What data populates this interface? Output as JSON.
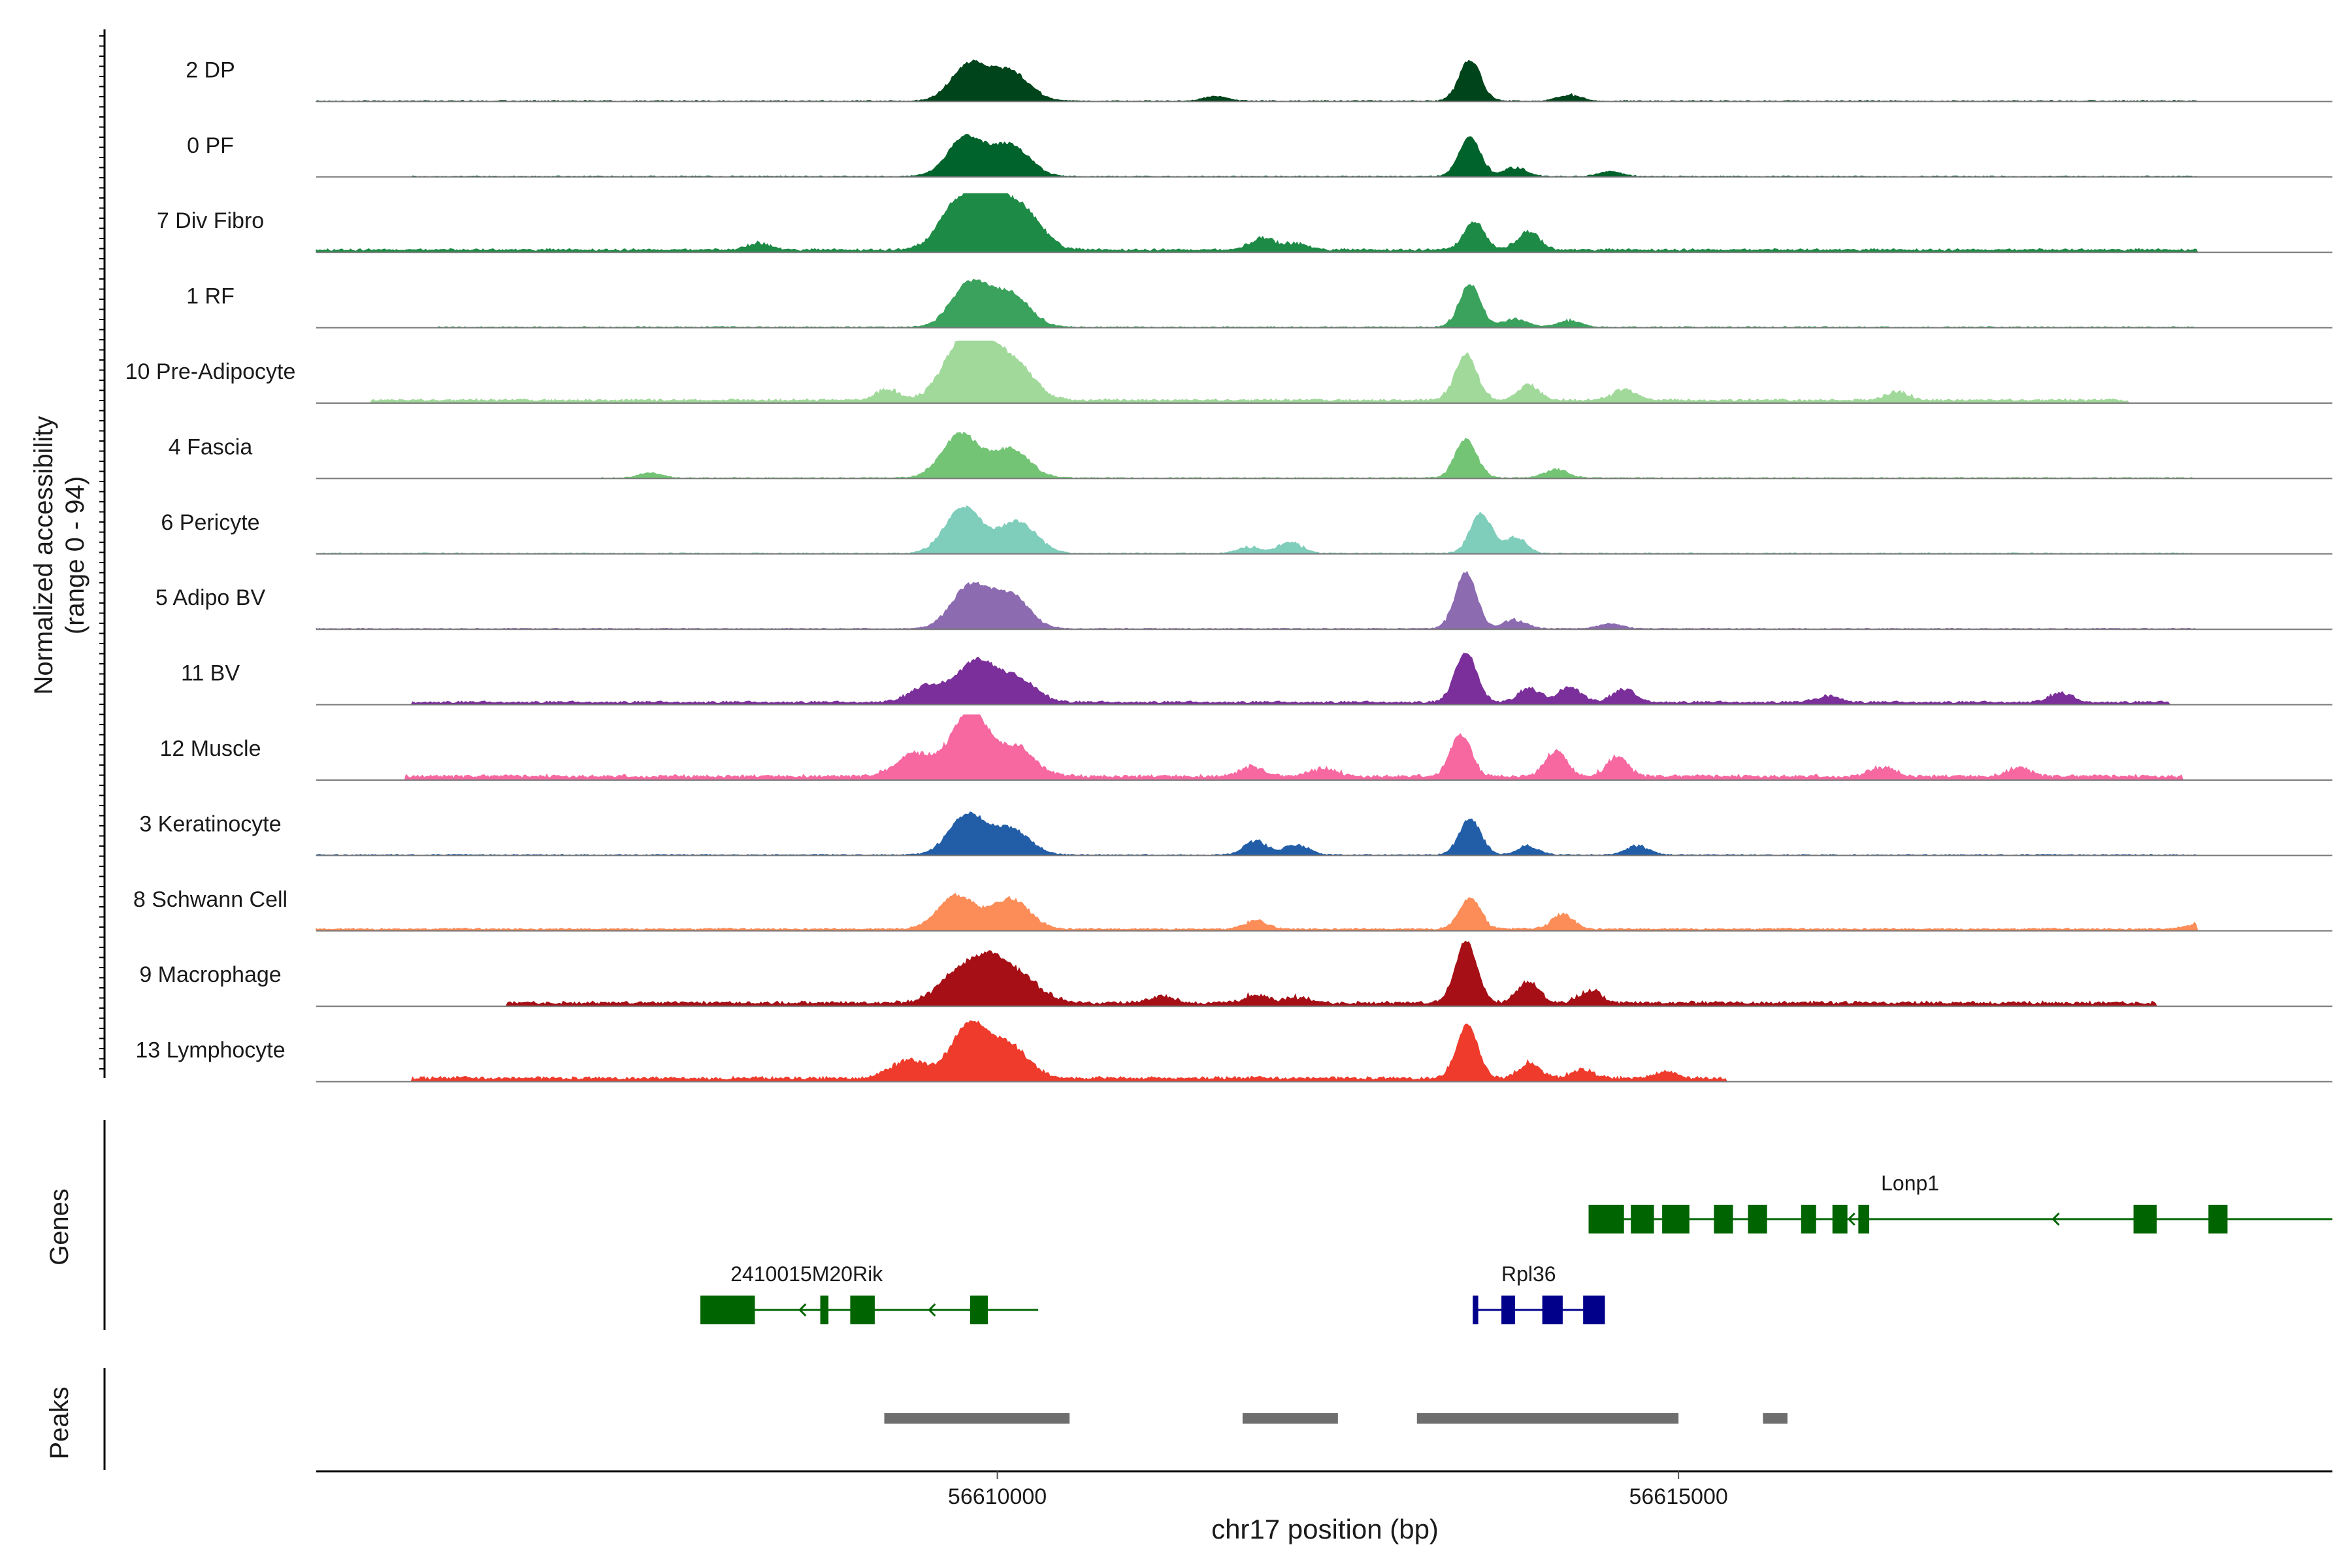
{
  "chart_data": {
    "type": "area",
    "title": "",
    "ylabel_line1": "Normalized accessibility",
    "ylabel_line2": "(range 0 - 94)",
    "xlabel": "chr17 position (bp)",
    "xlim": [
      56605000,
      56619800
    ],
    "ylim": [
      0,
      94
    ],
    "x_ticks": [
      {
        "value": 56610000,
        "label": "56610000"
      },
      {
        "value": 56615000,
        "label": "56615000"
      }
    ],
    "section_labels": {
      "genes": "Genes",
      "peaks": "Peaks"
    },
    "tracks": [
      {
        "label": "2 DP",
        "color": "#00441b",
        "scale": 0.85,
        "bg": 1.0,
        "noise": 0,
        "main": [
          [
            56609800,
            62
          ],
          [
            56610100,
            48
          ]
        ],
        "second": [
          [
            56613470,
            70
          ]
        ],
        "extras": [
          [
            56611600,
            8
          ],
          [
            56614200,
            10
          ]
        ],
        "range": [
          56605000,
          56618800
        ]
      },
      {
        "label": "0 PF",
        "color": "#00632b",
        "scale": 0.85,
        "bg": 1.0,
        "noise": 0,
        "main": [
          [
            56609770,
            66
          ],
          [
            56610100,
            52
          ]
        ],
        "second": [
          [
            56613470,
            66
          ]
        ],
        "extras": [
          [
            56613800,
            14
          ],
          [
            56614500,
            8
          ]
        ],
        "range": [
          56605700,
          56618800
        ]
      },
      {
        "label": "7 Div Fibro",
        "color": "#1d8a45",
        "scale": 0.9,
        "bg": 2.5,
        "noise": 3,
        "main": [
          [
            56609700,
            68
          ],
          [
            56609950,
            78
          ],
          [
            56610200,
            56
          ]
        ],
        "second": [
          [
            56613500,
            44
          ],
          [
            56613900,
            30
          ]
        ],
        "extras": [
          [
            56611950,
            20
          ],
          [
            56612200,
            10
          ],
          [
            56608250,
            10
          ]
        ],
        "range": [
          56605000,
          56618800
        ]
      },
      {
        "label": "1 RF",
        "color": "#3aa25c",
        "scale": 0.9,
        "bg": 1.0,
        "noise": 0,
        "main": [
          [
            56609800,
            70
          ],
          [
            56610100,
            52
          ]
        ],
        "second": [
          [
            56613470,
            68
          ]
        ],
        "extras": [
          [
            56613800,
            14
          ],
          [
            56614200,
            10
          ]
        ],
        "range": [
          56605900,
          56618800
        ]
      },
      {
        "label": "10 Pre-Adipocyte",
        "color": "#a1d99b",
        "scale": 0.95,
        "bg": 3.0,
        "noise": 3,
        "main": [
          [
            56609700,
            62
          ],
          [
            56609900,
            76
          ],
          [
            56610150,
            48
          ]
        ],
        "second": [
          [
            56613440,
            70
          ],
          [
            56613900,
            22
          ]
        ],
        "extras": [
          [
            56614600,
            16
          ],
          [
            56616600,
            12
          ],
          [
            56609200,
            16
          ]
        ],
        "range": [
          56605400,
          56618300
        ]
      },
      {
        "label": "4 Fascia",
        "color": "#74c476",
        "scale": 0.9,
        "bg": 1.0,
        "noise": 0,
        "main": [
          [
            56609730,
            70
          ],
          [
            56610100,
            46
          ]
        ],
        "second": [
          [
            56613440,
            62
          ]
        ],
        "extras": [
          [
            56614100,
            14
          ],
          [
            56607450,
            8
          ]
        ],
        "range": [
          56607100,
          56618800
        ]
      },
      {
        "label": "6 Pericyte",
        "color": "#7fcdbb",
        "scale": 0.9,
        "bg": 1.0,
        "noise": 0,
        "main": [
          [
            56609750,
            74
          ],
          [
            56610150,
            50
          ]
        ],
        "second": [
          [
            56613550,
            64
          ],
          [
            56613800,
            26
          ]
        ],
        "extras": [
          [
            56612150,
            18
          ],
          [
            56611850,
            10
          ]
        ],
        "range": [
          56605000,
          56618800
        ]
      },
      {
        "label": "5 Adipo BV",
        "color": "#8c6bb1",
        "scale": 0.9,
        "bg": 1.0,
        "noise": 0,
        "main": [
          [
            56609800,
            68
          ],
          [
            56610100,
            52
          ]
        ],
        "second": [
          [
            56613440,
            90
          ]
        ],
        "extras": [
          [
            56613800,
            14
          ],
          [
            56614500,
            8
          ]
        ],
        "range": [
          56605000,
          56618800
        ]
      },
      {
        "label": "11 BV",
        "color": "#7b2f9a",
        "scale": 0.9,
        "bg": 2.5,
        "noise": 3,
        "main": [
          [
            56609500,
            26
          ],
          [
            56609850,
            66
          ],
          [
            56610150,
            36
          ]
        ],
        "second": [
          [
            56613440,
            80
          ],
          [
            56613900,
            22
          ]
        ],
        "extras": [
          [
            56614200,
            24
          ],
          [
            56614600,
            20
          ],
          [
            56616100,
            10
          ],
          [
            56617800,
            14
          ]
        ],
        "range": [
          56605700,
          56618600
        ]
      },
      {
        "label": "12 Muscle",
        "color": "#f768a1",
        "scale": 1.0,
        "bg": 3.5,
        "noise": 4,
        "main": [
          [
            56609400,
            32
          ],
          [
            56609800,
            94
          ],
          [
            56610150,
            40
          ]
        ],
        "second": [
          [
            56613400,
            60
          ],
          [
            56614100,
            36
          ],
          [
            56614550,
            28
          ]
        ],
        "extras": [
          [
            56611870,
            14
          ],
          [
            56612400,
            12
          ],
          [
            56616500,
            14
          ],
          [
            56617500,
            12
          ]
        ],
        "range": [
          56605650,
          56618700
        ]
      },
      {
        "label": "3 Keratinocyte",
        "color": "#225ea8",
        "scale": 0.9,
        "bg": 1.0,
        "noise": 0,
        "main": [
          [
            56609780,
            64
          ],
          [
            56610100,
            40
          ]
        ],
        "second": [
          [
            56613470,
            58
          ],
          [
            56613900,
            14
          ]
        ],
        "extras": [
          [
            56611900,
            22
          ],
          [
            56612200,
            16
          ],
          [
            56614700,
            14
          ]
        ],
        "range": [
          56605000,
          56618800
        ]
      },
      {
        "label": "8 Schwann Cell",
        "color": "#fc8d59",
        "scale": 0.9,
        "bg": 2.0,
        "noise": 2,
        "main": [
          [
            56609700,
            54
          ],
          [
            56610100,
            48
          ]
        ],
        "second": [
          [
            56613470,
            50
          ],
          [
            56614150,
            24
          ]
        ],
        "extras": [
          [
            56611900,
            12
          ],
          [
            56618800,
            8
          ]
        ],
        "range": [
          56605000,
          56618800
        ]
      },
      {
        "label": "9 Macrophage",
        "color": "#a50f15",
        "scale": 1.0,
        "bg": 3.0,
        "noise": 4,
        "main": [
          [
            56609700,
            40
          ],
          [
            56609950,
            60
          ],
          [
            56610200,
            30
          ]
        ],
        "second": [
          [
            56613440,
            88
          ],
          [
            56613900,
            30
          ],
          [
            56614350,
            18
          ]
        ],
        "extras": [
          [
            56611200,
            10
          ],
          [
            56611900,
            12
          ],
          [
            56612200,
            8
          ]
        ],
        "range": [
          56606400,
          56618500
        ]
      },
      {
        "label": "13 Lymphocyte",
        "color": "#ef3b2c",
        "scale": 1.0,
        "bg": 3.0,
        "noise": 4,
        "main": [
          [
            56609350,
            26
          ],
          [
            56609800,
            78
          ],
          [
            56610100,
            44
          ]
        ],
        "second": [
          [
            56613450,
            76
          ],
          [
            56613900,
            22
          ]
        ],
        "extras": [
          [
            56614300,
            12
          ],
          [
            56614900,
            10
          ]
        ],
        "range": [
          56605700,
          56615350
        ]
      }
    ],
    "genes": [
      {
        "name": "Lonp1",
        "color": "#006400",
        "start": 56614340,
        "end": 56619800,
        "row": 0,
        "strand": "-",
        "exons": [
          [
            56614340,
            56614600
          ],
          [
            56614650,
            56614820
          ],
          [
            56614880,
            56615080
          ],
          [
            56615260,
            56615400
          ],
          [
            56615510,
            56615650
          ],
          [
            56615900,
            56616010
          ],
          [
            56616130,
            56616240
          ],
          [
            56616320,
            56616400
          ],
          [
            56618340,
            56618510
          ],
          [
            56618890,
            56619030
          ]
        ],
        "arrows": [
          56616250,
          56617750
        ],
        "label_x": 56616700
      },
      {
        "name": "2410015M20Rik",
        "color": "#006400",
        "start": 56607820,
        "end": 56610300,
        "row": 1,
        "strand": "-",
        "exons": [
          [
            56607820,
            56608220
          ],
          [
            56608700,
            56608760
          ],
          [
            56608920,
            56609100
          ],
          [
            56609800,
            56609930
          ]
        ],
        "arrows": [
          56608550,
          56609500
        ],
        "label_x": 56608600
      },
      {
        "name": "Rpl36",
        "color": "#00008b",
        "start": 56613490,
        "end": 56614460,
        "row": 1,
        "strand": "-",
        "exons": [
          [
            56613490,
            56613530
          ],
          [
            56613700,
            56613800
          ],
          [
            56614000,
            56614150
          ],
          [
            56614300,
            56614460
          ]
        ],
        "arrows": [],
        "label_x": 56613900
      }
    ],
    "peaks": [
      [
        56609170,
        56610530
      ],
      [
        56611800,
        56612500
      ],
      [
        56613080,
        56615000
      ],
      [
        56615620,
        56615800
      ]
    ]
  }
}
